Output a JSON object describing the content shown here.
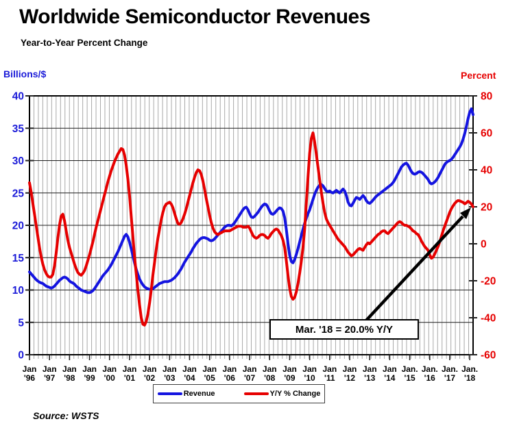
{
  "header": {
    "title": "Worldwide Semiconductor Revenues",
    "subtitle": "Year-to-Year Percent Change"
  },
  "axes": {
    "left_title": "Billions/$",
    "right_title": "Percent",
    "left_ticks": [
      0,
      5,
      10,
      15,
      20,
      25,
      30,
      35,
      40
    ],
    "right_ticks": [
      -60,
      -40,
      -20,
      0,
      20,
      40,
      60,
      80
    ],
    "x_labels": [
      {
        "line1": "Jan",
        "line2": "'96"
      },
      {
        "line1": "Jan",
        "line2": "'97"
      },
      {
        "line1": "Jan",
        "line2": "'98"
      },
      {
        "line1": "Jan",
        "line2": "'99"
      },
      {
        "line1": "Jan",
        "line2": "'00"
      },
      {
        "line1": "Jan",
        "line2": "'01"
      },
      {
        "line1": "Jan",
        "line2": "'02"
      },
      {
        "line1": "Jan",
        "line2": "'03"
      },
      {
        "line1": "Jan",
        "line2": "'04"
      },
      {
        "line1": "Jan",
        "line2": "'05"
      },
      {
        "line1": "Jan",
        "line2": "'06"
      },
      {
        "line1": "Jan",
        "line2": "'07"
      },
      {
        "line1": "Jan",
        "line2": "'08"
      },
      {
        "line1": "Jan",
        "line2": "'09"
      },
      {
        "line1": "Jan",
        "line2": "'10"
      },
      {
        "line1": "Jan",
        "line2": "'11"
      },
      {
        "line1": "Jan",
        "line2": "'12"
      },
      {
        "line1": "Jan",
        "line2": "'13"
      },
      {
        "line1": "Jan",
        "line2": "'14"
      },
      {
        "line1": "Jan.",
        "line2": "'15"
      },
      {
        "line1": "Jan.",
        "line2": "'16"
      },
      {
        "line1": "Jan.",
        "line2": "'17"
      },
      {
        "line1": "Jan.",
        "line2": "'18"
      }
    ]
  },
  "legend": {
    "revenue_label": "Revenue",
    "yoy_label": "Y/Y % Change"
  },
  "annotation": {
    "text": "Mar. '18 = 20.0% Y/Y"
  },
  "source": {
    "text": "Source: WSTS"
  },
  "colors": {
    "revenue": "#1414e0",
    "yoy": "#e60000",
    "left_tick_label": "#1a1ad8",
    "right_tick_label": "#e60000",
    "grid_vertical": "#a8a8a8",
    "grid_horizontal": "#1c1c1c",
    "frame": "#000000",
    "arrow": "#000000"
  },
  "chart_data": {
    "type": "line",
    "title": "Worldwide Semiconductor Revenues",
    "subtitle": "Year-to-Year Percent Change",
    "x_frequency": "monthly",
    "x_start": "1996-01",
    "x_end": "2018-03",
    "y_left": {
      "label": "Billions/$",
      "range": [
        0,
        40
      ],
      "tick_step": 5
    },
    "y_right": {
      "label": "Percent",
      "range": [
        -60,
        80
      ],
      "tick_step": 20
    },
    "grid": "on",
    "legend_position": "bottom",
    "annotation": "Mar. '18 = 20.0% Y/Y",
    "series": [
      {
        "name": "Revenue",
        "axis": "left",
        "units": "billions USD per month (3-mo avg)",
        "color": "#1414e0",
        "values": [
          12.8,
          12.5,
          12.2,
          11.9,
          11.6,
          11.4,
          11.2,
          11.1,
          11.0,
          10.8,
          10.6,
          10.5,
          10.4,
          10.3,
          10.4,
          10.6,
          10.9,
          11.2,
          11.5,
          11.7,
          11.9,
          12.0,
          11.9,
          11.7,
          11.4,
          11.2,
          11.1,
          10.9,
          10.6,
          10.4,
          10.2,
          10.0,
          9.9,
          9.8,
          9.7,
          9.6,
          9.6,
          9.7,
          9.9,
          10.2,
          10.6,
          11.0,
          11.4,
          11.8,
          12.2,
          12.5,
          12.8,
          13.1,
          13.5,
          13.9,
          14.4,
          14.9,
          15.4,
          15.9,
          16.5,
          17.1,
          17.7,
          18.3,
          18.6,
          18.2,
          17.4,
          16.4,
          15.3,
          14.2,
          13.2,
          12.4,
          11.7,
          11.2,
          10.8,
          10.5,
          10.3,
          10.2,
          10.1,
          10.1,
          10.2,
          10.4,
          10.6,
          10.8,
          11.0,
          11.1,
          11.2,
          11.3,
          11.3,
          11.3,
          11.4,
          11.5,
          11.7,
          11.9,
          12.2,
          12.5,
          12.9,
          13.3,
          13.8,
          14.3,
          14.7,
          15.1,
          15.5,
          15.9,
          16.4,
          16.8,
          17.2,
          17.5,
          17.8,
          18.0,
          18.1,
          18.1,
          18.0,
          17.9,
          17.7,
          17.6,
          17.7,
          17.9,
          18.2,
          18.5,
          18.8,
          19.1,
          19.4,
          19.7,
          19.9,
          20.0,
          20.0,
          19.9,
          20.1,
          20.4,
          20.8,
          21.2,
          21.6,
          22.0,
          22.4,
          22.7,
          22.8,
          22.4,
          21.8,
          21.3,
          21.2,
          21.4,
          21.7,
          22.0,
          22.4,
          22.8,
          23.1,
          23.3,
          23.2,
          22.8,
          22.2,
          21.8,
          21.7,
          21.9,
          22.2,
          22.5,
          22.7,
          22.6,
          22.2,
          21.2,
          19.4,
          17.2,
          15.4,
          14.4,
          14.2,
          14.7,
          15.5,
          16.4,
          17.4,
          18.4,
          19.4,
          20.3,
          21.1,
          21.8,
          22.4,
          23.2,
          24.0,
          24.8,
          25.4,
          25.9,
          26.2,
          26.3,
          26.1,
          25.7,
          25.3,
          25.2,
          25.3,
          25.1,
          25.0,
          25.2,
          25.4,
          25.2,
          25.0,
          25.3,
          25.6,
          25.3,
          24.6,
          23.6,
          23.1,
          23.0,
          23.4,
          23.9,
          24.3,
          24.2,
          24.0,
          24.3,
          24.6,
          24.3,
          23.8,
          23.5,
          23.4,
          23.6,
          23.9,
          24.2,
          24.5,
          24.7,
          24.9,
          25.1,
          25.3,
          25.5,
          25.7,
          25.9,
          26.1,
          26.3,
          26.6,
          27.0,
          27.5,
          28.0,
          28.5,
          29.0,
          29.3,
          29.5,
          29.6,
          29.3,
          28.8,
          28.3,
          28.0,
          27.9,
          28.0,
          28.2,
          28.3,
          28.2,
          28.0,
          27.7,
          27.4,
          27.1,
          26.6,
          26.4,
          26.5,
          26.7,
          27.0,
          27.4,
          27.9,
          28.4,
          28.9,
          29.4,
          29.7,
          29.9,
          30.0,
          30.2,
          30.5,
          30.9,
          31.3,
          31.7,
          32.1,
          32.6,
          33.3,
          34.2,
          35.3,
          36.5,
          37.5,
          38.0,
          37.1
        ]
      },
      {
        "name": "Y/Y % Change",
        "axis": "right",
        "units": "percent",
        "color": "#e60000",
        "values": [
          33,
          28,
          22,
          16,
          10,
          4,
          -2,
          -7,
          -11,
          -14,
          -16,
          -17.5,
          -18,
          -18,
          -16.5,
          -12,
          -5,
          3,
          10,
          15,
          16,
          12.5,
          7,
          2,
          -2,
          -5,
          -8,
          -11,
          -13.5,
          -15.5,
          -16.5,
          -17,
          -16,
          -14.5,
          -12,
          -9,
          -6,
          -2.5,
          1,
          5,
          9,
          12.5,
          16,
          19.5,
          23,
          26.5,
          30,
          33.5,
          36.5,
          39.5,
          42,
          44.5,
          46.5,
          48.5,
          50,
          51.5,
          51,
          48,
          42.5,
          35,
          26,
          15,
          4,
          -7,
          -16,
          -25,
          -33,
          -40,
          -43.5,
          -44,
          -42,
          -38,
          -32,
          -25,
          -17,
          -10,
          -3,
          3,
          8,
          13,
          17,
          20,
          21.5,
          22,
          22.5,
          21.5,
          19.5,
          16.5,
          13.5,
          11,
          10.5,
          11.5,
          13.5,
          16,
          19,
          22.5,
          26,
          29.5,
          33,
          36,
          38.5,
          40,
          39.5,
          37.5,
          34,
          29.5,
          24.5,
          20,
          15.5,
          11.5,
          8.5,
          6.5,
          5.5,
          5,
          5.5,
          6,
          6.5,
          7,
          7,
          7,
          7,
          7.5,
          8,
          8.5,
          9,
          9.5,
          9.5,
          9.5,
          9,
          9,
          9,
          9.5,
          8.5,
          6.5,
          4.5,
          3.5,
          3,
          3.5,
          4.5,
          5,
          5,
          4.5,
          3.5,
          3,
          4,
          5.5,
          6.5,
          7.5,
          8,
          7.5,
          6,
          4.5,
          2,
          -2,
          -9,
          -17,
          -24,
          -28.5,
          -30,
          -29,
          -26,
          -21.5,
          -16,
          -9.5,
          -2,
          8,
          22,
          36,
          49,
          57,
          60,
          55,
          48.5,
          41.5,
          34.5,
          28,
          22,
          17,
          13.5,
          11.5,
          10,
          8.5,
          7,
          5.5,
          4,
          2.5,
          1.5,
          0.5,
          -0.5,
          -1.5,
          -3,
          -4.5,
          -5.5,
          -6.5,
          -6,
          -5,
          -4,
          -3,
          -2.5,
          -3,
          -3.5,
          -2,
          -0.5,
          0.5,
          0,
          1,
          2,
          3,
          4,
          5,
          5.5,
          6.5,
          7,
          7,
          6,
          5.5,
          6.5,
          7.5,
          8.5,
          9.5,
          10.5,
          11.5,
          12,
          11.5,
          10.5,
          10,
          10,
          9.5,
          9,
          8,
          7,
          6.5,
          5.5,
          5,
          3.5,
          1.5,
          0,
          -1.5,
          -2.5,
          -3.5,
          -6,
          -7.8,
          -7.2,
          -5.5,
          -3.5,
          -1.5,
          1,
          4,
          7,
          9.5,
          12,
          14.5,
          17,
          19,
          20.5,
          21.8,
          22.8,
          23.4,
          23.2,
          22.8,
          22.4,
          21.6,
          22.2,
          23,
          22.4,
          21.5,
          20
        ]
      }
    ]
  }
}
